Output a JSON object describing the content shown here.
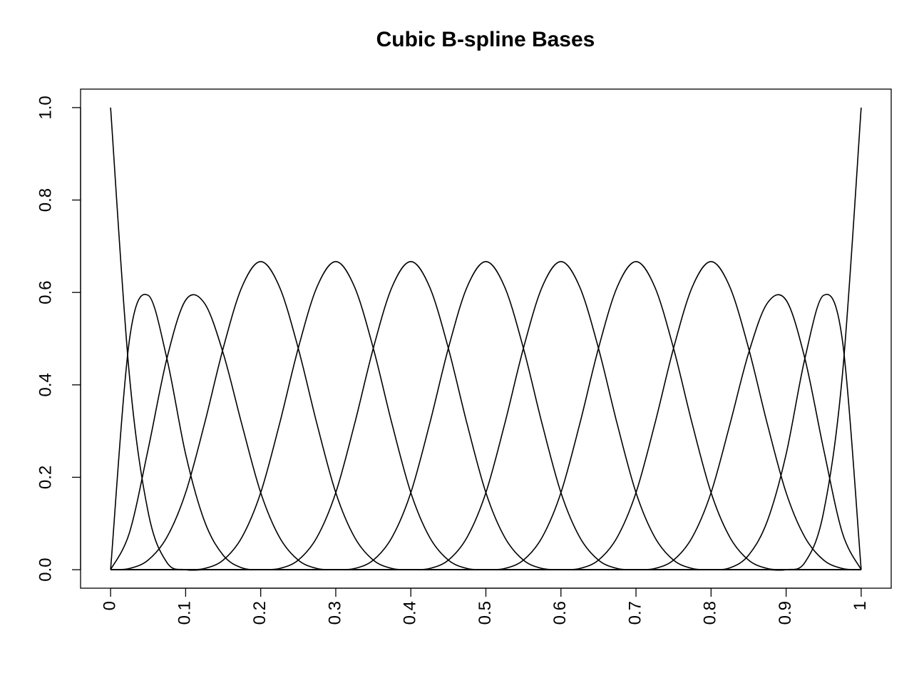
{
  "chart_data": {
    "type": "line",
    "title": "Cubic B-spline Bases",
    "x": [
      0,
      0.025,
      0.05,
      0.075,
      0.1,
      0.125,
      0.15,
      0.175,
      0.2,
      0.225,
      0.25,
      0.275,
      0.3,
      0.325,
      0.35,
      0.375,
      0.4,
      0.425,
      0.45,
      0.475,
      0.5,
      0.525,
      0.55,
      0.575,
      0.6,
      0.625,
      0.65,
      0.675,
      0.7,
      0.725,
      0.75,
      0.775,
      0.8,
      0.825,
      0.85,
      0.875,
      0.9,
      0.925,
      0.95,
      0.975,
      1
    ],
    "series": [
      {
        "color": "#000000",
        "values": [
          1,
          0.4219,
          0.125,
          0.0156,
          0,
          0,
          0,
          0,
          0,
          0,
          0,
          0,
          0,
          0,
          0,
          0,
          0,
          0,
          0,
          0,
          0,
          0,
          0,
          0,
          0,
          0,
          0,
          0,
          0,
          0,
          0,
          0,
          0,
          0,
          0,
          0,
          0,
          0,
          0,
          0,
          0
        ]
      },
      {
        "color": "#000000",
        "values": [
          0,
          0.4961,
          0.5938,
          0.457,
          0.25,
          0.1055,
          0.0313,
          0.0039,
          0,
          0,
          0,
          0,
          0,
          0,
          0,
          0,
          0,
          0,
          0,
          0,
          0,
          0,
          0,
          0,
          0,
          0,
          0,
          0,
          0,
          0,
          0,
          0,
          0,
          0,
          0,
          0,
          0,
          0,
          0,
          0,
          0
        ]
      },
      {
        "color": "#000000",
        "values": [
          0,
          0.0794,
          0.2604,
          0.457,
          0.5833,
          0.5768,
          0.4687,
          0.3138,
          0.1667,
          0.0703,
          0.0208,
          0.0026,
          0,
          0,
          0,
          0,
          0,
          0,
          0,
          0,
          0,
          0,
          0,
          0,
          0,
          0,
          0,
          0,
          0,
          0,
          0,
          0,
          0,
          0,
          0,
          0,
          0,
          0,
          0,
          0,
          0
        ]
      },
      {
        "color": "#000000",
        "values": [
          0,
          0.0026,
          0.0208,
          0.0703,
          0.1667,
          0.3151,
          0.4792,
          0.612,
          0.6667,
          0.612,
          0.4792,
          0.3151,
          0.1667,
          0.0703,
          0.0208,
          0.0026,
          0,
          0,
          0,
          0,
          0,
          0,
          0,
          0,
          0,
          0,
          0,
          0,
          0,
          0,
          0,
          0,
          0,
          0,
          0,
          0,
          0,
          0,
          0,
          0,
          0
        ]
      },
      {
        "color": "#000000",
        "values": [
          0,
          0,
          0,
          0,
          0,
          0.0026,
          0.0208,
          0.0703,
          0.1667,
          0.3151,
          0.4792,
          0.612,
          0.6667,
          0.612,
          0.4792,
          0.3151,
          0.1667,
          0.0703,
          0.0208,
          0.0026,
          0,
          0,
          0,
          0,
          0,
          0,
          0,
          0,
          0,
          0,
          0,
          0,
          0,
          0,
          0,
          0,
          0,
          0,
          0,
          0,
          0
        ]
      },
      {
        "color": "#000000",
        "values": [
          0,
          0,
          0,
          0,
          0,
          0,
          0,
          0,
          0,
          0.0026,
          0.0208,
          0.0703,
          0.1667,
          0.3151,
          0.4792,
          0.612,
          0.6667,
          0.612,
          0.4792,
          0.3151,
          0.1667,
          0.0703,
          0.0208,
          0.0026,
          0,
          0,
          0,
          0,
          0,
          0,
          0,
          0,
          0,
          0,
          0,
          0,
          0,
          0,
          0,
          0,
          0
        ]
      },
      {
        "color": "#000000",
        "values": [
          0,
          0,
          0,
          0,
          0,
          0,
          0,
          0,
          0,
          0,
          0,
          0,
          0,
          0.0026,
          0.0208,
          0.0703,
          0.1667,
          0.3151,
          0.4792,
          0.612,
          0.6667,
          0.612,
          0.4792,
          0.3151,
          0.1667,
          0.0703,
          0.0208,
          0.0026,
          0,
          0,
          0,
          0,
          0,
          0,
          0,
          0,
          0,
          0,
          0,
          0,
          0
        ]
      },
      {
        "color": "#000000",
        "values": [
          0,
          0,
          0,
          0,
          0,
          0,
          0,
          0,
          0,
          0,
          0,
          0,
          0,
          0,
          0,
          0,
          0,
          0.0026,
          0.0208,
          0.0703,
          0.1667,
          0.3151,
          0.4792,
          0.612,
          0.6667,
          0.612,
          0.4792,
          0.3151,
          0.1667,
          0.0703,
          0.0208,
          0.0026,
          0,
          0,
          0,
          0,
          0,
          0,
          0,
          0,
          0
        ]
      },
      {
        "color": "#000000",
        "values": [
          0,
          0,
          0,
          0,
          0,
          0,
          0,
          0,
          0,
          0,
          0,
          0,
          0,
          0,
          0,
          0,
          0,
          0,
          0,
          0,
          0,
          0.0026,
          0.0208,
          0.0703,
          0.1667,
          0.3151,
          0.4792,
          0.612,
          0.6667,
          0.612,
          0.4792,
          0.3151,
          0.1667,
          0.0703,
          0.0208,
          0.0026,
          0,
          0,
          0,
          0,
          0
        ]
      },
      {
        "color": "#000000",
        "values": [
          0,
          0,
          0,
          0,
          0,
          0,
          0,
          0,
          0,
          0,
          0,
          0,
          0,
          0,
          0,
          0,
          0,
          0,
          0,
          0,
          0,
          0,
          0,
          0,
          0,
          0.0026,
          0.0208,
          0.0703,
          0.1667,
          0.3151,
          0.4792,
          0.612,
          0.6667,
          0.612,
          0.4792,
          0.3151,
          0.1667,
          0.0703,
          0.0208,
          0.0026,
          0
        ]
      },
      {
        "color": "#000000",
        "values": [
          0,
          0,
          0,
          0,
          0,
          0,
          0,
          0,
          0,
          0,
          0,
          0,
          0,
          0,
          0,
          0,
          0,
          0,
          0,
          0,
          0,
          0,
          0,
          0,
          0,
          0,
          0,
          0,
          0,
          0.0026,
          0.0208,
          0.0703,
          0.1667,
          0.3138,
          0.4687,
          0.5768,
          0.5833,
          0.457,
          0.2604,
          0.0794,
          0
        ]
      },
      {
        "color": "#000000",
        "values": [
          0,
          0,
          0,
          0,
          0,
          0,
          0,
          0,
          0,
          0,
          0,
          0,
          0,
          0,
          0,
          0,
          0,
          0,
          0,
          0,
          0,
          0,
          0,
          0,
          0,
          0,
          0,
          0,
          0,
          0,
          0,
          0,
          0,
          0.0039,
          0.0313,
          0.1055,
          0.25,
          0.457,
          0.5938,
          0.4961,
          0
        ]
      },
      {
        "color": "#000000",
        "values": [
          0,
          0,
          0,
          0,
          0,
          0,
          0,
          0,
          0,
          0,
          0,
          0,
          0,
          0,
          0,
          0,
          0,
          0,
          0,
          0,
          0,
          0,
          0,
          0,
          0,
          0,
          0,
          0,
          0,
          0,
          0,
          0,
          0,
          0,
          0,
          0,
          0,
          0.0156,
          0.125,
          0.4219,
          1
        ]
      }
    ],
    "xlim": [
      -0.04,
      1.04
    ],
    "ylim": [
      -0.04,
      1.04
    ],
    "xticks": [
      0,
      0.1,
      0.2,
      0.3,
      0.4,
      0.5,
      0.6,
      0.7,
      0.8,
      0.9,
      1
    ],
    "yticks": [
      {
        "value": 0,
        "label": "0.0"
      },
      0.2,
      0.4,
      0.6,
      0.8,
      {
        "value": 1,
        "label": "1.0"
      }
    ]
  }
}
